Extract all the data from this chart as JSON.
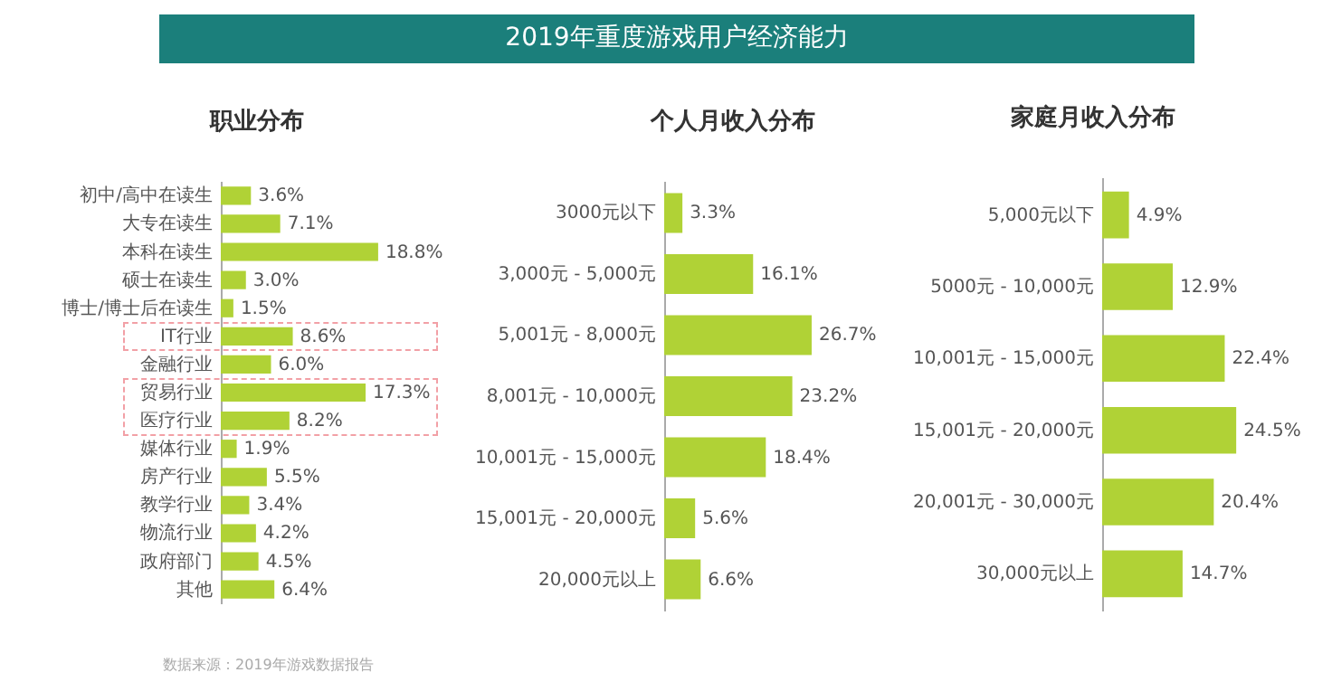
{
  "chart_data": [
    {
      "type": "other",
      "title": "2019年重度游戏用户经济能力"
    },
    {
      "type": "bar",
      "orientation": "horizontal",
      "title": "职业分布",
      "color": "#b0d236",
      "categories": [
        "初中/高中在读生",
        "大专在读生",
        "本科在读生",
        "硕士在读生",
        "博士/博士后在读生",
        "IT行业",
        "金融行业",
        "贸易行业",
        "医疗行业",
        "媒体行业",
        "房产行业",
        "教学行业",
        "物流行业",
        "政府部门",
        "其他"
      ],
      "values": [
        3.6,
        7.1,
        18.8,
        3.0,
        1.5,
        8.6,
        6.0,
        17.3,
        8.2,
        1.9,
        5.5,
        3.4,
        4.2,
        4.5,
        6.4
      ],
      "value_labels": [
        "3.6%",
        "7.1%",
        "18.8%",
        "3.0%",
        "1.5%",
        "8.6%",
        "6.0%",
        "17.3%",
        "8.2%",
        "1.9%",
        "5.5%",
        "3.4%",
        "4.2%",
        "4.5%",
        "6.4%"
      ],
      "annotations": [
        "数据来源：2019年游戏数据报告"
      ]
    },
    {
      "type": "bar",
      "orientation": "horizontal",
      "title": "个人月收入分布",
      "color": "#b0d236",
      "categories": [
        "3000元以下",
        "3,000元 - 5,000元",
        "5,001元 - 8,000元",
        "8,001元 - 10,000元",
        "10,001元 - 15,000元",
        "15,001元 - 20,000元",
        "20,000元以上"
      ],
      "values": [
        3.3,
        16.1,
        26.7,
        23.2,
        18.4,
        5.6,
        6.6
      ],
      "value_labels": [
        "3.3%",
        "16.1%",
        "26.7%",
        "23.2%",
        "18.4%",
        "5.6%",
        "6.6%"
      ]
    },
    {
      "type": "bar",
      "orientation": "horizontal",
      "title": "家庭月收入分布",
      "color": "#b0d236",
      "categories": [
        "5,000元以下",
        "5000元 - 10,000元",
        "10,001元 - 15,000元",
        "15,001元 - 20,000元",
        "20,001元 - 30,000元",
        "30,000元以上"
      ],
      "values": [
        4.9,
        12.9,
        22.4,
        24.5,
        20.4,
        14.7
      ],
      "value_labels": [
        "4.9%",
        "12.9%",
        "22.4%",
        "24.5%",
        "20.4%",
        "14.7%"
      ]
    }
  ]
}
